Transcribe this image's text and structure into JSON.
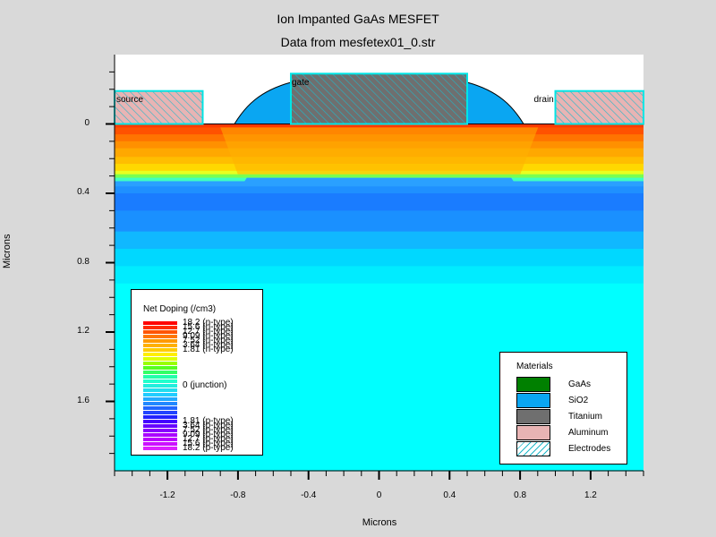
{
  "chart_data": {
    "type": "heatmap",
    "title": "Ion Impanted GaAs MESFET",
    "subtitle": "Data from mesfetex01_0.str",
    "xlabel": "Microns",
    "ylabel": "Microns",
    "xlim": [
      -1.5,
      1.5
    ],
    "ylim": [
      -0.4,
      2.0
    ],
    "y_inverted": true,
    "x_ticks": [
      "-1.2",
      "-0.8",
      "-0.4",
      "0",
      "0.4",
      "0.8",
      "1.2"
    ],
    "x_tick_values": [
      -1.2,
      -0.8,
      -0.4,
      0,
      0.4,
      0.8,
      1.2
    ],
    "y_ticks": [
      "0",
      "0.4",
      "0.8",
      "1.2",
      "1.6"
    ],
    "y_tick_values": [
      0,
      0.4,
      0.8,
      1.2,
      1.6
    ],
    "regions": {
      "source": {
        "label": "source",
        "x": [
          -1.5,
          -1.0
        ],
        "y": [
          -0.19,
          0
        ]
      },
      "drain": {
        "label": "drain",
        "x": [
          1.0,
          1.5
        ],
        "y": [
          -0.19,
          0
        ]
      },
      "gate": {
        "label": "gate",
        "x": [
          -0.5,
          0.5
        ],
        "y": [
          -0.29,
          0
        ]
      },
      "oxide_left": {
        "x": [
          -0.82,
          -0.5
        ]
      },
      "oxide_right": {
        "x": [
          0.5,
          0.82
        ]
      }
    },
    "doping_bands": [
      {
        "y": [
          0,
          0.02
        ],
        "color": "#ff3a00"
      },
      {
        "y": [
          0.02,
          0.06
        ],
        "color": "#ff5200"
      },
      {
        "y": [
          0.06,
          0.1
        ],
        "color": "#ff7400"
      },
      {
        "y": [
          0.1,
          0.14
        ],
        "color": "#ff9000"
      },
      {
        "y": [
          0.14,
          0.19
        ],
        "color": "#ffa800"
      },
      {
        "y": [
          0.19,
          0.23
        ],
        "color": "#ffbe00"
      },
      {
        "y": [
          0.23,
          0.27
        ],
        "color": "#ffd800"
      },
      {
        "y": [
          0.27,
          0.29
        ],
        "color": "#e8ff20"
      },
      {
        "y": [
          0.29,
          0.31
        ],
        "color": "#7aff50"
      },
      {
        "y": [
          0.31,
          0.33
        ],
        "color": "#40ffc0"
      },
      {
        "y": [
          0.33,
          0.36
        ],
        "color": "#2aa0ff"
      },
      {
        "y": [
          0.36,
          0.4
        ],
        "color": "#1f90ff"
      },
      {
        "y": [
          0.4,
          0.5
        ],
        "color": "#1a7cff"
      },
      {
        "y": [
          0.5,
          0.62
        ],
        "color": "#1a90ff"
      },
      {
        "y": [
          0.62,
          0.72
        ],
        "color": "#10b8ff"
      },
      {
        "y": [
          0.72,
          0.82
        ],
        "color": "#00d8ff"
      },
      {
        "y": [
          0.82,
          0.92
        ],
        "color": "#00ecff"
      },
      {
        "y": [
          0.92,
          2.0
        ],
        "color": "#00ffff"
      }
    ],
    "doping_legend": {
      "title": "Net Doping (/cm3)",
      "colors": [
        "#ff0000",
        "#ff2a00",
        "#ff5500",
        "#ff7700",
        "#ff9900",
        "#ffb000",
        "#ffcc00",
        "#ffee00",
        "#ddff00",
        "#99ff00",
        "#55ff22",
        "#33ff66",
        "#22ffaa",
        "#22ffcc",
        "#22eedd",
        "#22ddee",
        "#22ccff",
        "#22aaff",
        "#2288ff",
        "#2266ff",
        "#2244ff",
        "#2222ff",
        "#4400ff",
        "#6600ff",
        "#8800ff",
        "#aa00ff",
        "#bb00ff",
        "#cc11ff",
        "#dd22ff"
      ],
      "labels": [
        {
          "text": "18.2 (n-type)",
          "pos": 0
        },
        {
          "text": "15.6 (n-type)",
          "pos": 1
        },
        {
          "text": "12.7 (n-type)",
          "pos": 2
        },
        {
          "text": "9.09 (n-type)",
          "pos": 3
        },
        {
          "text": "7.52 (n-type)",
          "pos": 4
        },
        {
          "text": "3.64 (n-type)",
          "pos": 5
        },
        {
          "text": "1.81 (n-type)",
          "pos": 6
        },
        {
          "text": "0 (junction)",
          "pos": 14
        },
        {
          "text": "1.81 (p-type)",
          "pos": 22
        },
        {
          "text": "3.64 (p-type)",
          "pos": 23
        },
        {
          "text": "7.52 (p-type)",
          "pos": 24
        },
        {
          "text": "9.09 (p-type)",
          "pos": 25
        },
        {
          "text": "12.7 (p-type)",
          "pos": 26
        },
        {
          "text": "15.6 (p-type)",
          "pos": 27
        },
        {
          "text": "18.2 (p-type)",
          "pos": 28
        }
      ]
    },
    "materials_legend": {
      "title": "Materials",
      "items": [
        {
          "name": "GaAs",
          "color": "#008000"
        },
        {
          "name": "SiO2",
          "color": "#0aa6f2"
        },
        {
          "name": "Titanium",
          "color": "#6f6f6f"
        },
        {
          "name": "Aluminum",
          "color": "#e8b4b4"
        },
        {
          "name": "Electrodes",
          "color": "#ffffff",
          "hatch": "#20b8c8"
        }
      ]
    },
    "colors": {
      "background": "#d9d9d9",
      "plot_bg": "#ffffff",
      "electrode_border": "#00e5e5",
      "hatch": "#20b8c8",
      "sio2": "#0aa6f2",
      "titanium": "#6f6f6f",
      "aluminum": "#e8b4b4"
    }
  }
}
